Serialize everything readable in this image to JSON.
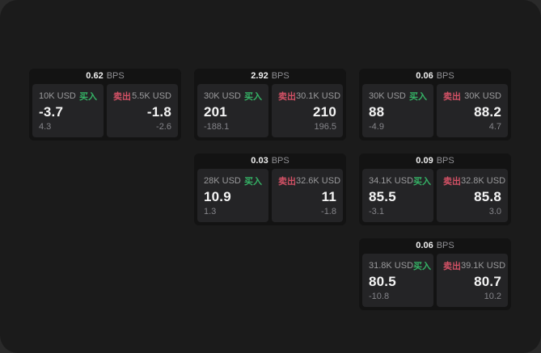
{
  "page": {
    "bps_unit": "BPS",
    "buy_label": "买入",
    "sell_label": "卖出",
    "colors": {
      "buy": "#35b366",
      "sell": "#d25165",
      "page_bg": "#1b1b1b",
      "card_bg": "#131313",
      "panel_bg": "#242426",
      "big_white": "#f4f4f4",
      "label_gray": "#9a9a9c"
    }
  },
  "cards": [
    {
      "bps": "0.62",
      "buy": {
        "amount": "10K USD",
        "price": "-3.7",
        "delta": "4.3"
      },
      "sell": {
        "amount": "5.5K USD",
        "price": "-1.8",
        "delta": "-2.6"
      }
    },
    {
      "bps": "2.92",
      "buy": {
        "amount": "30K USD",
        "price": "201",
        "delta": "-188.1"
      },
      "sell": {
        "amount": "30.1K USD",
        "price": "210",
        "delta": "196.5"
      }
    },
    {
      "bps": "0.06",
      "buy": {
        "amount": "30K USD",
        "price": "88",
        "delta": "-4.9"
      },
      "sell": {
        "amount": "30K USD",
        "price": "88.2",
        "delta": "4.7"
      }
    },
    {
      "bps": "0.03",
      "buy": {
        "amount": "28K USD",
        "price": "10.9",
        "delta": "1.3"
      },
      "sell": {
        "amount": "32.6K USD",
        "price": "11",
        "delta": "-1.8"
      }
    },
    {
      "bps": "0.09",
      "buy": {
        "amount": "34.1K USD",
        "price": "85.5",
        "delta": "-3.1"
      },
      "sell": {
        "amount": "32.8K USD",
        "price": "85.8",
        "delta": "3.0"
      }
    },
    {
      "bps": "0.06",
      "buy": {
        "amount": "31.8K USD",
        "price": "80.5",
        "delta": "-10.8"
      },
      "sell": {
        "amount": "39.1K USD",
        "price": "80.7",
        "delta": "10.2"
      }
    }
  ]
}
